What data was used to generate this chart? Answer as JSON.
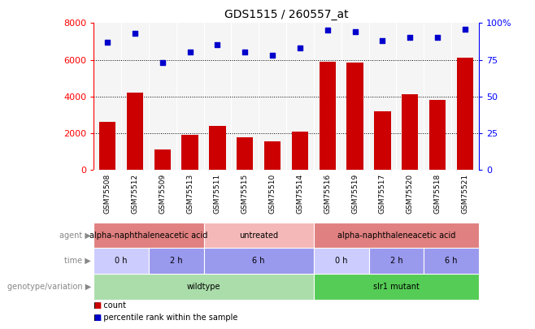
{
  "title": "GDS1515 / 260557_at",
  "samples": [
    "GSM75508",
    "GSM75512",
    "GSM75509",
    "GSM75513",
    "GSM75511",
    "GSM75515",
    "GSM75510",
    "GSM75514",
    "GSM75516",
    "GSM75519",
    "GSM75517",
    "GSM75520",
    "GSM75518",
    "GSM75521"
  ],
  "counts": [
    2600,
    4200,
    1100,
    1900,
    2400,
    1750,
    1550,
    2100,
    5900,
    5850,
    3200,
    4100,
    3800,
    6100
  ],
  "percentile_ranks": [
    87,
    93,
    73,
    80,
    85,
    80,
    78,
    83,
    95,
    94,
    88,
    90,
    90,
    96
  ],
  "ylim_left": [
    0,
    8000
  ],
  "ylim_right": [
    0,
    100
  ],
  "yticks_left": [
    0,
    2000,
    4000,
    6000,
    8000
  ],
  "yticks_right": [
    0,
    25,
    50,
    75,
    100
  ],
  "bar_color": "#cc0000",
  "scatter_color": "#0000cc",
  "bg_color": "#ffffff",
  "plot_bg": "#f5f5f5",
  "label_color": "#888888",
  "genotype_row": {
    "label": "genotype/variation",
    "segments": [
      {
        "text": "wildtype",
        "start": 0,
        "end": 8,
        "color": "#aaddaa"
      },
      {
        "text": "slr1 mutant",
        "start": 8,
        "end": 14,
        "color": "#55cc55"
      }
    ]
  },
  "time_row": {
    "label": "time",
    "segments": [
      {
        "text": "0 h",
        "start": 0,
        "end": 2,
        "color": "#ccccff"
      },
      {
        "text": "2 h",
        "start": 2,
        "end": 4,
        "color": "#9999ee"
      },
      {
        "text": "6 h",
        "start": 4,
        "end": 8,
        "color": "#9999ee"
      },
      {
        "text": "0 h",
        "start": 8,
        "end": 10,
        "color": "#ccccff"
      },
      {
        "text": "2 h",
        "start": 10,
        "end": 12,
        "color": "#9999ee"
      },
      {
        "text": "6 h",
        "start": 12,
        "end": 14,
        "color": "#9999ee"
      }
    ]
  },
  "agent_row": {
    "label": "agent",
    "segments": [
      {
        "text": "alpha-naphthaleneacetic acid",
        "start": 0,
        "end": 4,
        "color": "#e08080"
      },
      {
        "text": "untreated",
        "start": 4,
        "end": 8,
        "color": "#f5b8b8"
      },
      {
        "text": "alpha-naphthaleneacetic acid",
        "start": 8,
        "end": 14,
        "color": "#e08080"
      }
    ]
  },
  "legend": [
    {
      "color": "#cc0000",
      "label": "count"
    },
    {
      "color": "#0000cc",
      "label": "percentile rank within the sample"
    }
  ]
}
